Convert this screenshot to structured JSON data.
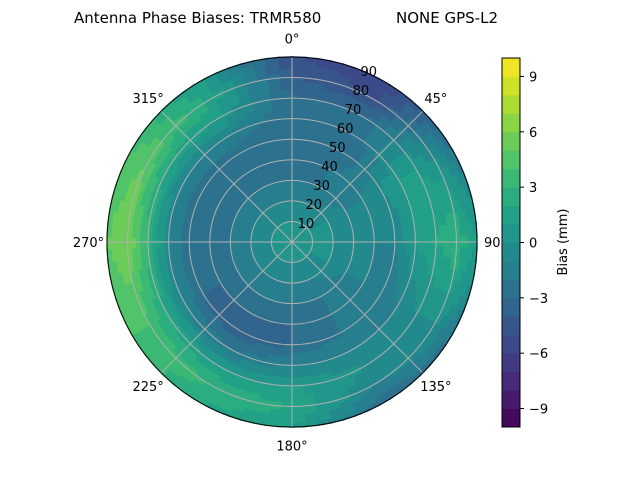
{
  "chart_data": {
    "type": "heatmap",
    "projection": "polar",
    "title_left": "Antenna Phase Biases: TRMR580",
    "title_right": "NONE GPS-L2",
    "theta_direction": "clockwise",
    "theta_zero": "north",
    "theta_tick_labels": [
      "0°",
      "45°",
      "90°",
      "135°",
      "180°",
      "225°",
      "270°",
      "315°"
    ],
    "theta_ticks": [
      0,
      45,
      90,
      135,
      180,
      225,
      270,
      315
    ],
    "r_ticks": [
      10,
      20,
      30,
      40,
      50,
      60,
      70,
      80,
      90
    ],
    "r_tick_labels": [
      "10",
      "20",
      "30",
      "40",
      "50",
      "60",
      "70",
      "80",
      "90"
    ],
    "rlim": [
      0,
      90
    ],
    "grid": true,
    "colormap": "viridis",
    "colorbar": {
      "label": "Bias (mm)",
      "range": [
        -10,
        10
      ],
      "levels_step": 1,
      "ticks": [
        -9,
        -6,
        -3,
        0,
        3,
        6,
        9
      ],
      "tick_labels": [
        "−9",
        "−6",
        "−3",
        "0",
        "3",
        "6",
        "9"
      ]
    },
    "azimuths": [
      0,
      30,
      60,
      90,
      120,
      150,
      180,
      210,
      240,
      270,
      300,
      330
    ],
    "zeniths": [
      0,
      10,
      20,
      30,
      40,
      50,
      60,
      70,
      80,
      90
    ],
    "bias_grid": [
      [
        0,
        0,
        -1,
        -2,
        -3,
        -3,
        -3,
        -3,
        -4,
        -5
      ],
      [
        0,
        0,
        -1,
        -2,
        -2,
        -3,
        -3,
        -3,
        -5,
        -6
      ],
      [
        0,
        0,
        0,
        -1,
        -1,
        0,
        1,
        1,
        0,
        -2
      ],
      [
        0,
        0,
        0,
        -1,
        -1,
        -1,
        1,
        2,
        3,
        1
      ],
      [
        0,
        0,
        0,
        -1,
        -1,
        -2,
        -1,
        0,
        0,
        -2
      ],
      [
        0,
        0,
        -1,
        -2,
        -2,
        -2,
        -1,
        0,
        -1,
        -3
      ],
      [
        0,
        0,
        -1,
        -2,
        -3,
        -3,
        -1,
        1,
        2,
        1
      ],
      [
        0,
        0,
        -1,
        -2,
        -3,
        -4,
        -2,
        1,
        3,
        2
      ],
      [
        0,
        0,
        -1,
        -2,
        -3,
        -3,
        -1,
        2,
        4,
        4
      ],
      [
        0,
        0,
        -1,
        -2,
        -3,
        -3,
        -1,
        3,
        6,
        5
      ],
      [
        0,
        0,
        -1,
        -2,
        -3,
        -3,
        -1,
        2,
        5,
        4
      ],
      [
        0,
        0,
        -1,
        -2,
        -3,
        -3,
        -1,
        1,
        2,
        1
      ]
    ]
  }
}
